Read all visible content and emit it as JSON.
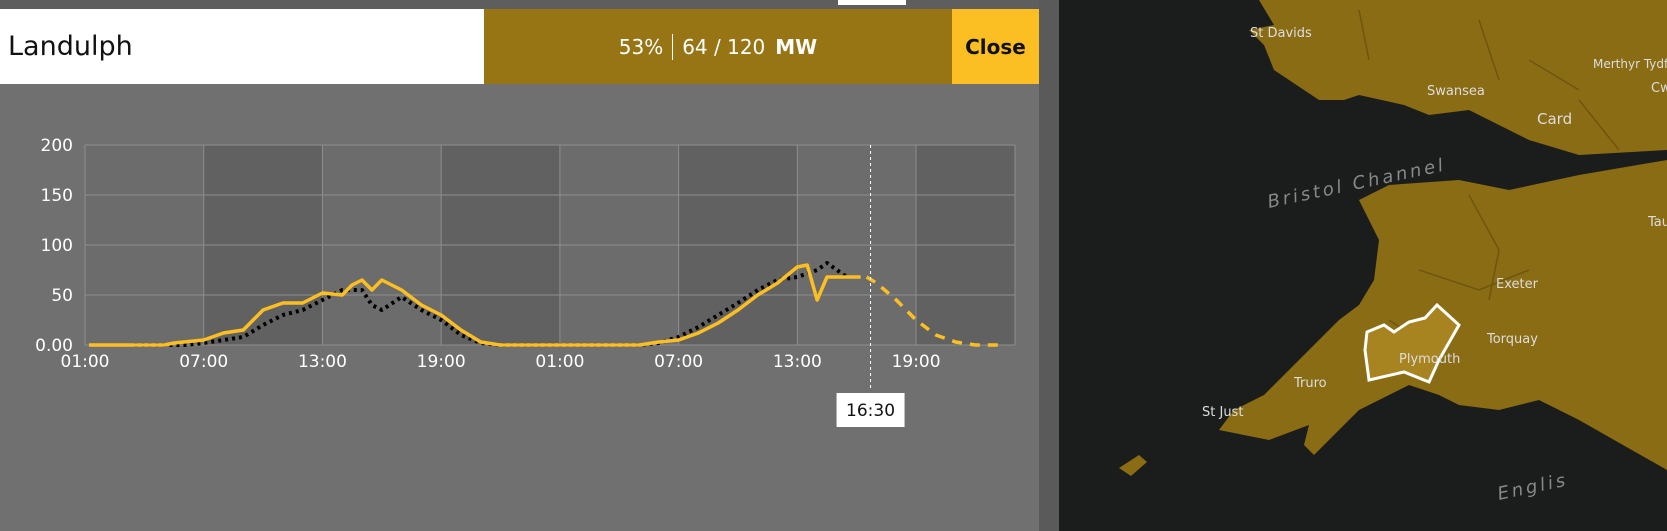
{
  "header": {
    "title": "Landulph",
    "percent": "53%",
    "output": "64 / 120",
    "unit": "MW",
    "close": "Close"
  },
  "chart": {
    "type": "line",
    "xlim": [
      0,
      47
    ],
    "xticks": [
      {
        "value": 0,
        "label": "01:00"
      },
      {
        "value": 6,
        "label": "07:00"
      },
      {
        "value": 12,
        "label": "13:00"
      },
      {
        "value": 18,
        "label": "19:00"
      },
      {
        "value": 24,
        "label": "01:00"
      },
      {
        "value": 30,
        "label": "07:00"
      },
      {
        "value": 36,
        "label": "13:00"
      },
      {
        "value": 42,
        "label": "19:00"
      }
    ],
    "ylim": [
      0,
      200
    ],
    "yticks": [
      {
        "value": 0,
        "label": "0.00"
      },
      50,
      100,
      150,
      200
    ],
    "grid": true,
    "series": [
      {
        "color": "#000000",
        "style": "dotted",
        "x": [
          2.5,
          3,
          4,
          5,
          6,
          7,
          8,
          9,
          10,
          11,
          12,
          13,
          14,
          14.5,
          15,
          16,
          17,
          18,
          19,
          20,
          21,
          22,
          24,
          26,
          28,
          29,
          30,
          31,
          32,
          33,
          34,
          35,
          36,
          37,
          37.5,
          38,
          38.5
        ],
        "values": [
          0,
          0,
          0,
          0,
          2,
          5,
          8,
          20,
          30,
          35,
          45,
          55,
          55,
          40,
          35,
          48,
          35,
          25,
          10,
          2,
          0,
          0,
          0,
          0,
          0,
          2,
          8,
          18,
          30,
          42,
          55,
          65,
          68,
          75,
          82,
          75,
          68
        ]
      },
      {
        "color": "#fbbf23",
        "style": "solid",
        "x": [
          0.2,
          1,
          2,
          3,
          4,
          4.5,
          5,
          6,
          7,
          8,
          9,
          10,
          11,
          12,
          13,
          13.5,
          14,
          14.5,
          15,
          16,
          17,
          18,
          19,
          20,
          21,
          22,
          24,
          26,
          28,
          29,
          30,
          31,
          32,
          33,
          34,
          35,
          36,
          36.5,
          37,
          37.5,
          38,
          38.5,
          39.2
        ],
        "values": [
          0,
          0,
          0,
          0,
          0,
          2,
          3,
          5,
          12,
          15,
          35,
          42,
          42,
          52,
          50,
          60,
          65,
          55,
          65,
          55,
          40,
          30,
          15,
          3,
          0,
          0,
          0,
          0,
          0,
          3,
          5,
          12,
          22,
          35,
          50,
          62,
          78,
          80,
          45,
          68,
          68,
          68,
          68
        ]
      },
      {
        "color": "#fbbf23",
        "style": "dashed",
        "x": [
          39.5,
          40,
          41,
          42,
          43,
          44,
          45,
          46,
          46.5
        ],
        "values": [
          68,
          62,
          45,
          25,
          10,
          3,
          0,
          0,
          0
        ]
      }
    ],
    "cursor": {
      "x": 39.7,
      "label": "16:30"
    }
  },
  "map": {
    "labels": [
      "St Davids",
      "Merthyr Tydf",
      "Swansea",
      "Card",
      "Cw",
      "Bristol Channel",
      "Tau",
      "Exeter",
      "Torquay",
      "Plymouth",
      "Truro",
      "St Just",
      "Englis"
    ]
  }
}
